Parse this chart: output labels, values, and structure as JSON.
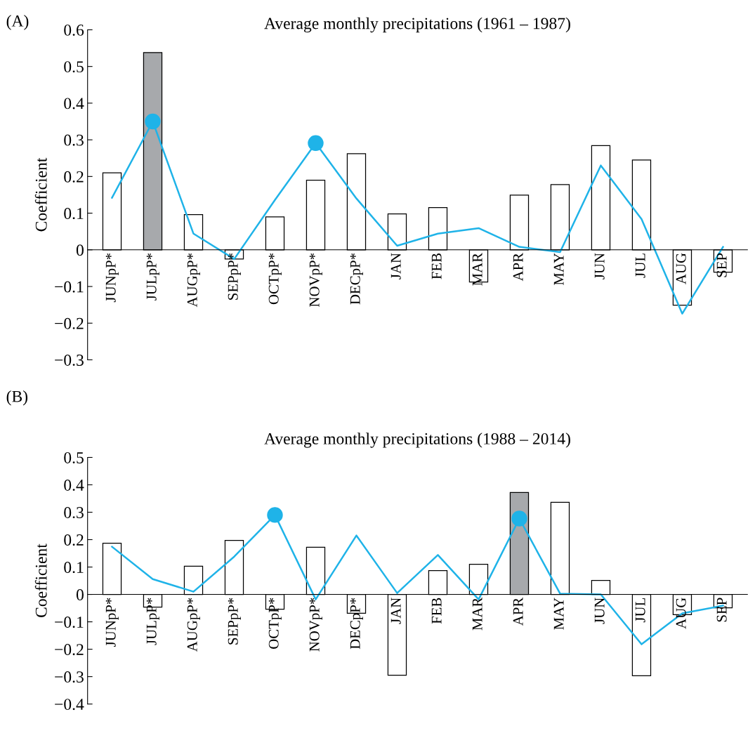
{
  "chart_data": [
    {
      "type": "bar",
      "title": "Average monthly precipitations (1961 – 1987)",
      "ylabel": "Coefficient",
      "annotations": [
        "(A)"
      ],
      "categories": [
        "JUNpP*",
        "JULpP*",
        "AUGpP*",
        "SEPpP*",
        "OCTpP*",
        "NOVpP*",
        "DECpP*",
        "JAN",
        "FEB",
        "MAR",
        "APR",
        "MAY",
        "JUN",
        "JUL",
        "AUG",
        "SEP"
      ],
      "series": [
        {
          "values": [
            0.21,
            0.538,
            0.096,
            -0.025,
            0.09,
            0.19,
            0.262,
            0.098,
            0.115,
            -0.088,
            0.149,
            0.178,
            0.284,
            0.245,
            -0.151,
            -0.061
          ],
          "colors": [
            "#ffffff",
            "#a7a9ac",
            "#ffffff",
            "#ffffff",
            "#ffffff",
            "#ffffff",
            "#ffffff",
            "#ffffff",
            "#ffffff",
            "#ffffff",
            "#ffffff",
            "#ffffff",
            "#ffffff",
            "#ffffff",
            "#ffffff",
            "#ffffff"
          ]
        },
        {
          "type": "line",
          "color": "#1fb3e8",
          "values": [
            0.142,
            0.35,
            0.044,
            -0.025,
            0.136,
            0.291,
            0.14,
            0.011,
            0.044,
            0.059,
            0.008,
            -0.006,
            0.23,
            0.084,
            -0.174,
            0.008
          ]
        },
        {
          "type": "scatter",
          "color": "#1fb3e8",
          "marker": "circle",
          "x": [
            "JULpP*",
            "NOVpP*"
          ],
          "values": [
            0.35,
            0.291
          ]
        }
      ],
      "ylim": [
        -0.3,
        0.6
      ],
      "yticks": [
        {
          "value": -0.3,
          "label": "−0.3"
        },
        {
          "value": -0.2,
          "label": "−0.2"
        },
        {
          "value": -0.1,
          "label": "−0.1"
        },
        0,
        0.1,
        0.2,
        0.3,
        0.4,
        0.5,
        0.6
      ],
      "grid": false,
      "legend": false,
      "line_style": "solid"
    },
    {
      "type": "bar",
      "title": "Average monthly precipitations (1988 – 2014)",
      "ylabel": "Coefficient",
      "annotations": [
        "(B)"
      ],
      "categories": [
        "JUNpP*",
        "JULpP*",
        "AUGpP*",
        "SEPpP*",
        "OCTpP*",
        "NOVpP*",
        "DECpP*",
        "JAN",
        "FEB",
        "MAR",
        "APR",
        "MAY",
        "JUN",
        "JUL",
        "AUG",
        "SEP"
      ],
      "series": [
        {
          "values": [
            0.187,
            -0.046,
            0.103,
            0.197,
            -0.054,
            0.172,
            -0.069,
            -0.295,
            0.087,
            0.11,
            0.372,
            0.336,
            0.051,
            -0.297,
            -0.074,
            -0.049
          ],
          "colors": [
            "#ffffff",
            "#ffffff",
            "#ffffff",
            "#ffffff",
            "#ffffff",
            "#ffffff",
            "#ffffff",
            "#ffffff",
            "#ffffff",
            "#ffffff",
            "#a7a9ac",
            "#ffffff",
            "#ffffff",
            "#ffffff",
            "#ffffff",
            "#ffffff"
          ]
        },
        {
          "type": "line",
          "color": "#1fb3e8",
          "values": [
            0.174,
            0.056,
            0.01,
            0.138,
            0.29,
            -0.018,
            0.215,
            0.005,
            0.144,
            -0.018,
            0.277,
            0.003,
            0.0,
            -0.182,
            -0.069,
            -0.041
          ]
        },
        {
          "type": "scatter",
          "color": "#1fb3e8",
          "marker": "circle",
          "x": [
            "OCTpP*",
            "APR"
          ],
          "values": [
            0.29,
            0.277
          ]
        }
      ],
      "ylim": [
        -0.4,
        0.5
      ],
      "yticks": [
        {
          "value": -0.4,
          "label": "−0.4"
        },
        {
          "value": -0.3,
          "label": "−0.3"
        },
        {
          "value": -0.2,
          "label": "−0.2"
        },
        {
          "value": -0.1,
          "label": "−0.1"
        },
        0,
        0.1,
        0.2,
        0.3,
        0.4,
        0.5
      ],
      "grid": false,
      "legend": false,
      "line_style": "solid"
    }
  ]
}
